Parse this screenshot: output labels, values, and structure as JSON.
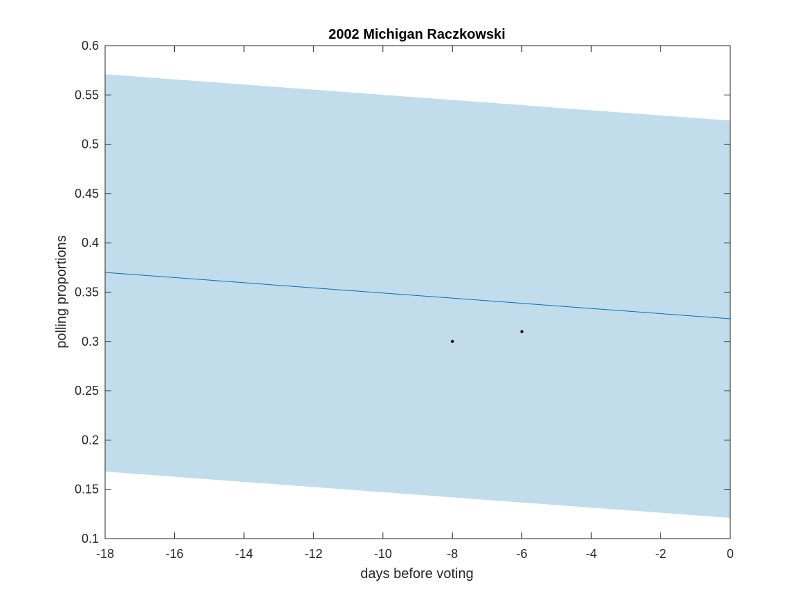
{
  "chart_data": {
    "type": "line",
    "title": "2002 Michigan Raczkowski",
    "xlabel": "days before voting",
    "ylabel": "polling proportions",
    "xlim": [
      -18,
      0
    ],
    "ylim": [
      0.1,
      0.6
    ],
    "xticks": [
      -18,
      -16,
      -14,
      -12,
      -10,
      -8,
      -6,
      -4,
      -2,
      0
    ],
    "xtick_labels": [
      "-18",
      "-16",
      "-14",
      "-12",
      "-10",
      "-8",
      "-6",
      "-4",
      "-2",
      "0"
    ],
    "yticks": [
      0.1,
      0.15,
      0.2,
      0.25,
      0.3,
      0.35,
      0.4,
      0.45,
      0.5,
      0.55,
      0.6
    ],
    "ytick_labels": [
      "0.1",
      "0.15",
      "0.2",
      "0.25",
      "0.3",
      "0.35",
      "0.4",
      "0.45",
      "0.5",
      "0.55",
      "0.6"
    ],
    "grid": false,
    "band": {
      "x": [
        -18,
        0
      ],
      "upper": [
        0.571,
        0.524
      ],
      "lower": [
        0.168,
        0.121
      ],
      "color": "#c1dcea"
    },
    "trend_line": {
      "x": [
        -18,
        0
      ],
      "y": [
        0.37,
        0.323
      ],
      "color": "#0072bd"
    },
    "points": {
      "x": [
        -8,
        -6
      ],
      "y": [
        0.3,
        0.31
      ],
      "color": "#000000"
    }
  }
}
